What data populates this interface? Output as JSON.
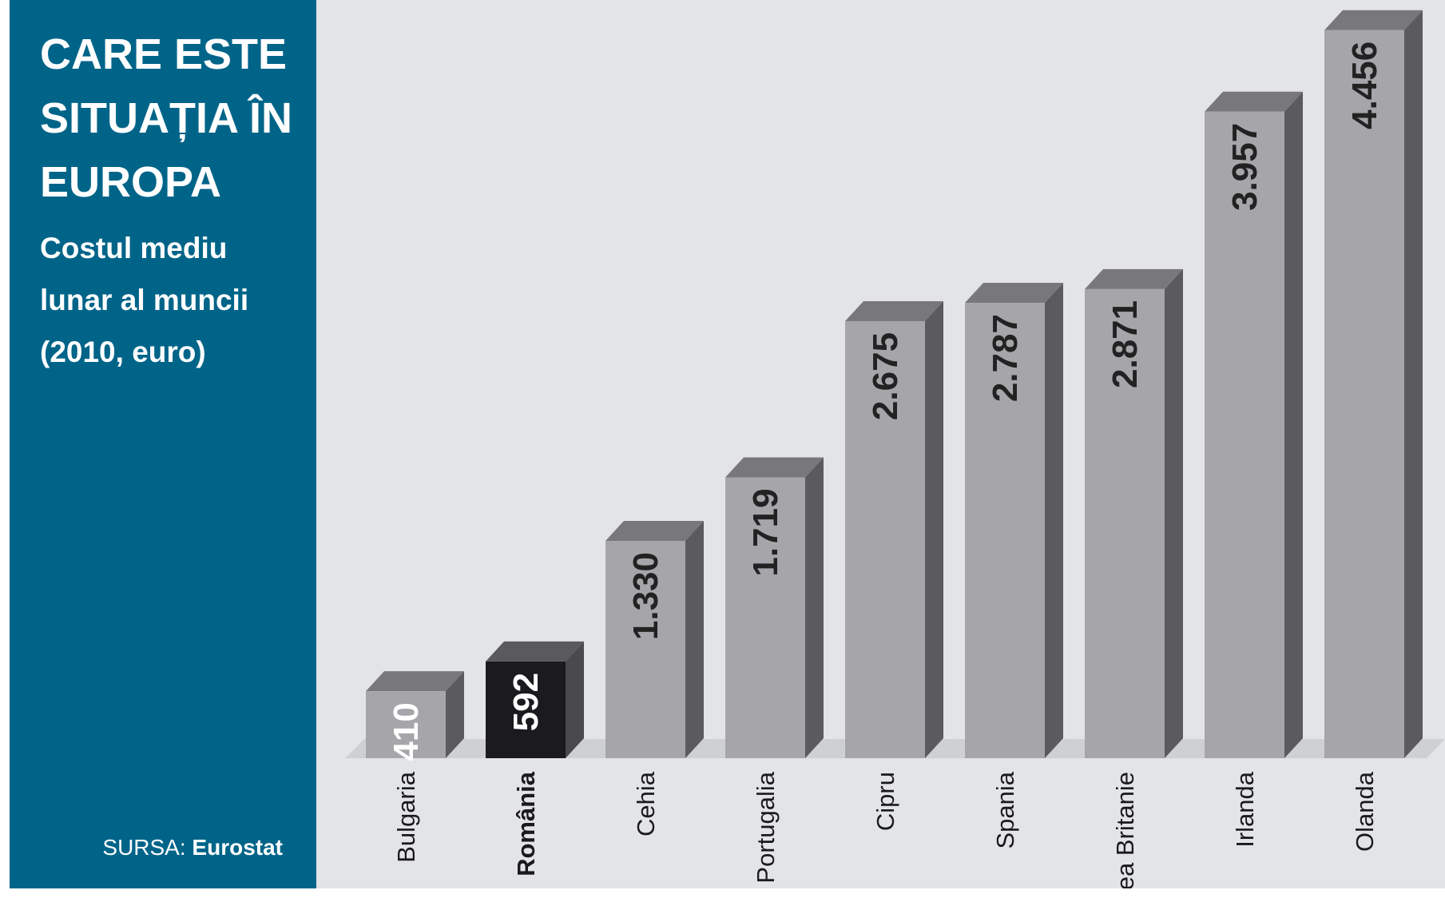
{
  "chart_data": {
    "type": "bar3d",
    "title": "CARE ESTE SITUAȚIA ÎN EUROPA",
    "subtitle": "Costul mediu lunar al muncii (2010, euro)",
    "source_label": "SURSA:",
    "source": "Eurostat",
    "categories": [
      "Bulgaria",
      "România",
      "Cehia",
      "Portugalia",
      "Cipru",
      "Spania",
      "Marea Britanie",
      "Irlanda",
      "Olanda"
    ],
    "values": [
      410,
      592,
      1330,
      1719,
      2675,
      2787,
      2871,
      3957,
      4456
    ],
    "value_labels": [
      "410",
      "592",
      "1.330",
      "1.719",
      "2.675",
      "2.787",
      "2.871",
      "3.957",
      "4.456"
    ],
    "color": "#a6a6aa",
    "highlight": {
      "category": "România",
      "color": "#1b1a1e"
    }
  }
}
